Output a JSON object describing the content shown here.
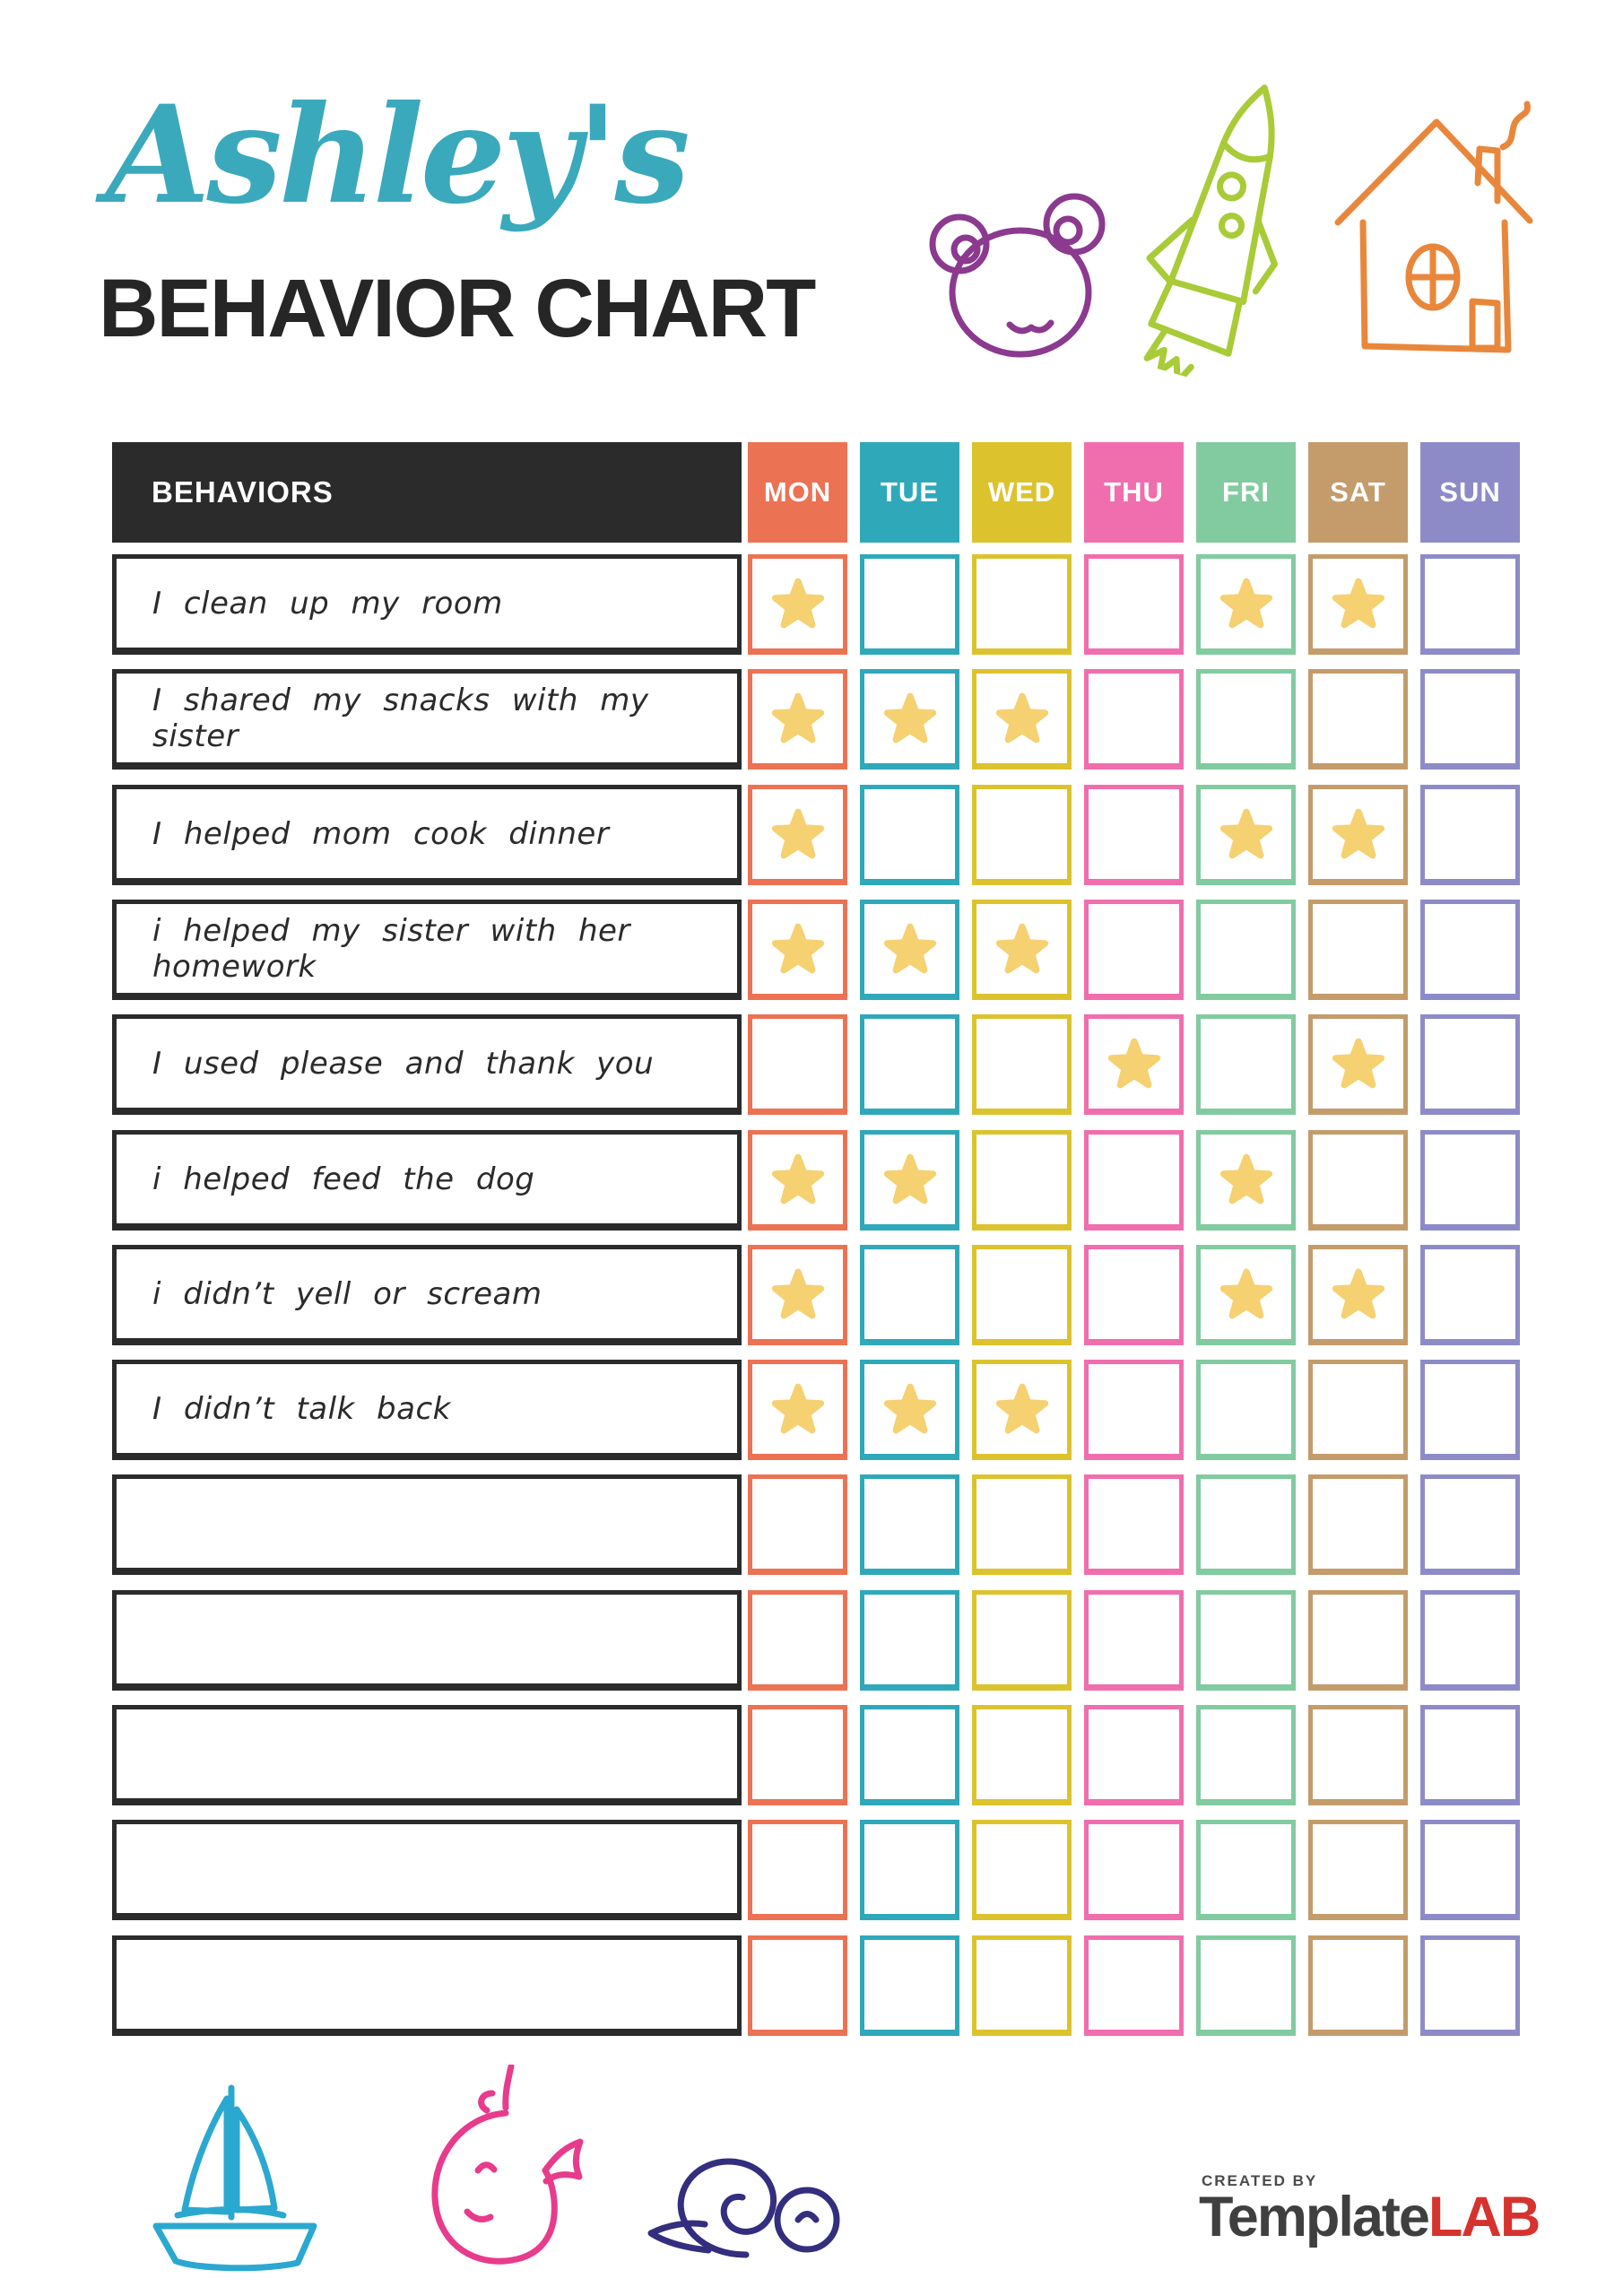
{
  "header": {
    "name": "Ashley's",
    "title": "BEHAVIOR CHART",
    "name_color": "#3BA9BC",
    "title_color": "#262626"
  },
  "table": {
    "header": "BEHAVIORS",
    "header_bg": "#2B2B2B",
    "star_color": "#F6D172",
    "days": [
      {
        "label": "MON",
        "color": "#EC7254"
      },
      {
        "label": "TUE",
        "color": "#2FA9BA"
      },
      {
        "label": "WED",
        "color": "#DCC32E"
      },
      {
        "label": "THU",
        "color": "#F06EAE"
      },
      {
        "label": "FRI",
        "color": "#82CBA0"
      },
      {
        "label": "SAT",
        "color": "#C49C6B"
      },
      {
        "label": "SUN",
        "color": "#8D8BC7"
      }
    ],
    "rows": [
      {
        "label": "I clean up my room",
        "stars": [
          "MON",
          "FRI",
          "SAT"
        ]
      },
      {
        "label": "I shared my snacks with my sister",
        "stars": [
          "MON",
          "TUE",
          "WED"
        ]
      },
      {
        "label": "I helped mom cook dinner",
        "stars": [
          "MON",
          "FRI",
          "SAT"
        ]
      },
      {
        "label": "i helped my sister with her homework",
        "stars": [
          "MON",
          "TUE",
          "WED"
        ]
      },
      {
        "label": "I used please and thank you",
        "stars": [
          "THU",
          "SAT"
        ]
      },
      {
        "label": "i helped feed the dog",
        "stars": [
          "MON",
          "TUE",
          "FRI"
        ]
      },
      {
        "label": "i didn’t yell or scream",
        "stars": [
          "MON",
          "FRI",
          "SAT"
        ]
      },
      {
        "label": "I didn’t talk back",
        "stars": [
          "MON",
          "TUE",
          "WED"
        ]
      },
      {
        "label": "",
        "stars": []
      },
      {
        "label": "",
        "stars": []
      },
      {
        "label": "",
        "stars": []
      },
      {
        "label": "",
        "stars": []
      },
      {
        "label": "",
        "stars": []
      }
    ]
  },
  "decorations": {
    "top": [
      "bear",
      "rocket",
      "house"
    ],
    "bottom": [
      "sailboat",
      "whale",
      "snail"
    ],
    "colors": {
      "bear": "#8B3A8F",
      "rocket": "#A9CB37",
      "house": "#E8873B",
      "sailboat": "#2BA8D0",
      "whale": "#E83B8C",
      "snail": "#332E7E"
    }
  },
  "footer": {
    "created_by": "CREATED BY",
    "brand_dark": "Template",
    "brand_red": "LAB",
    "brand_red_color": "#D6332F"
  }
}
